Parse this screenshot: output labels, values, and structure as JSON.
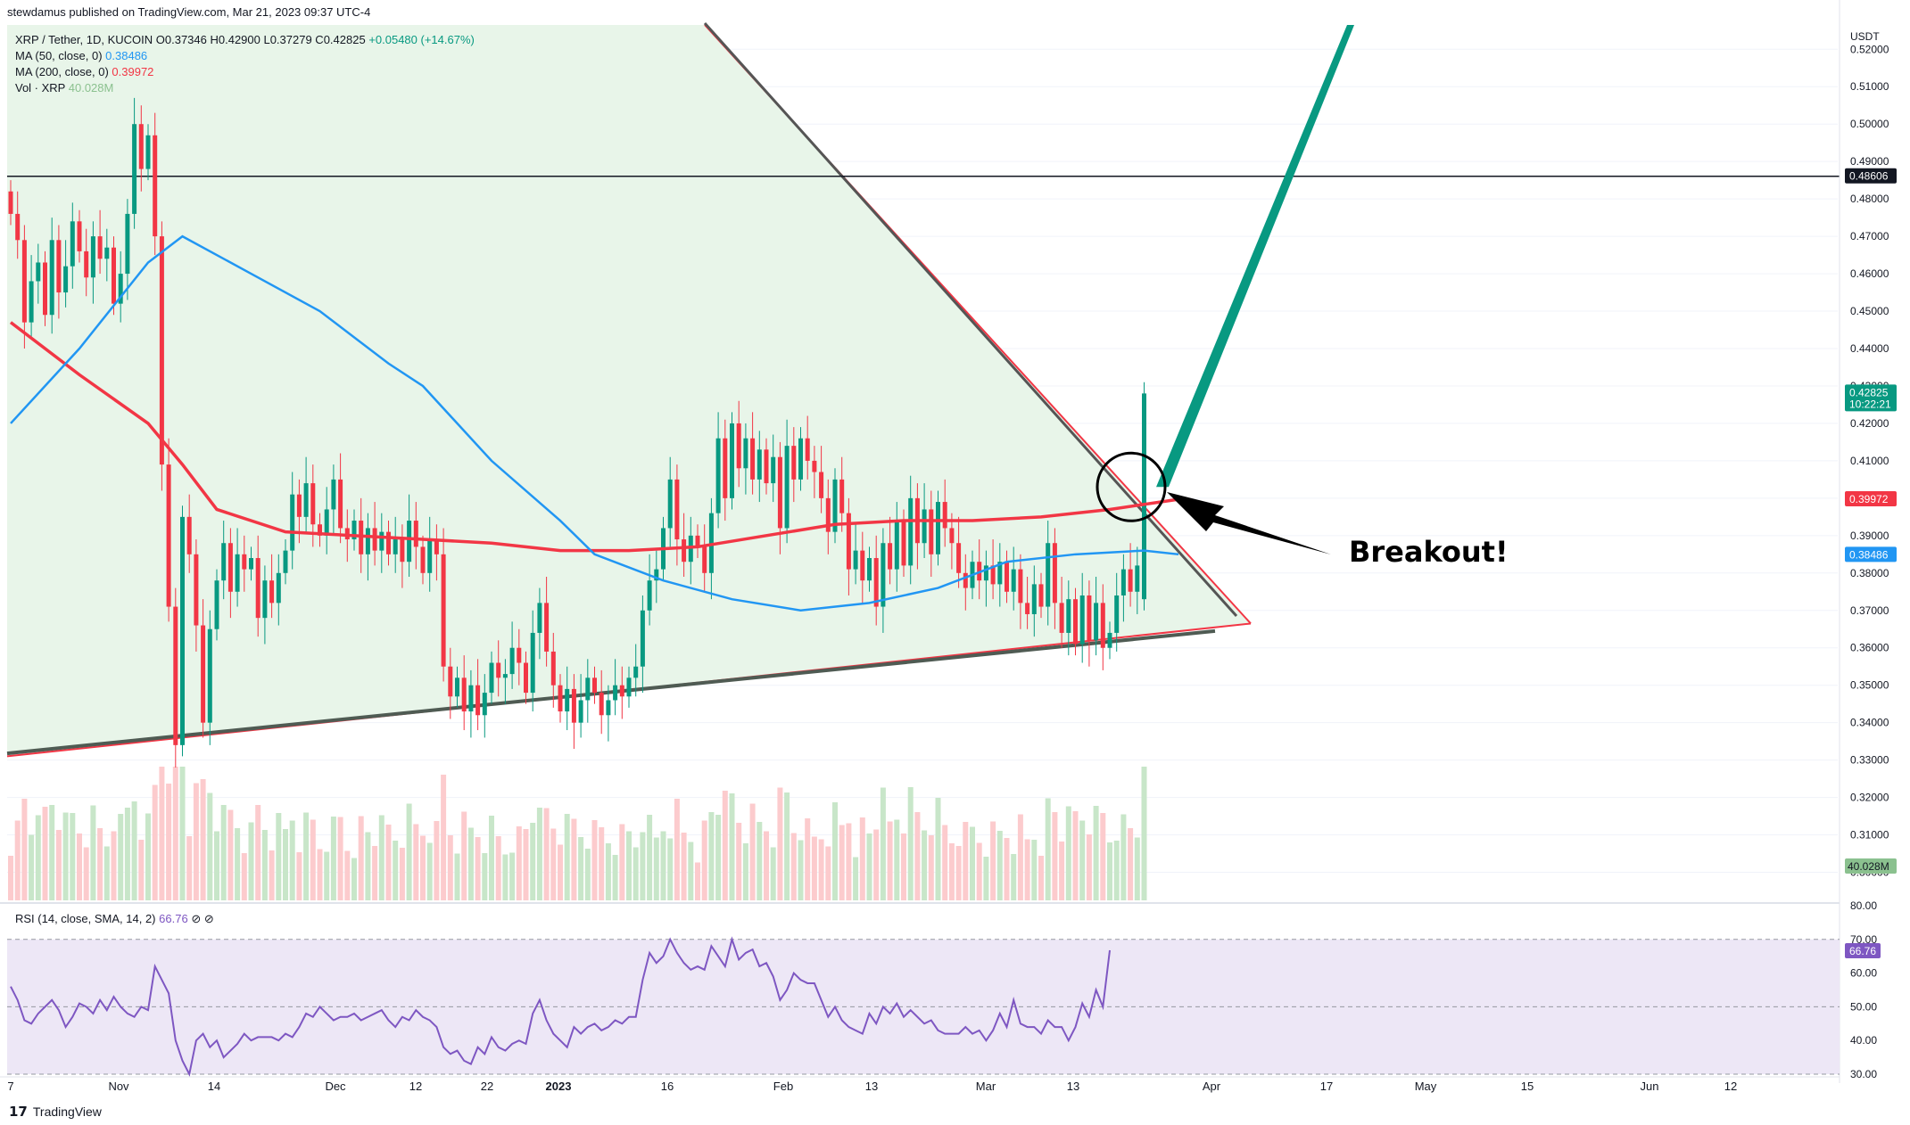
{
  "header": {
    "published": "stewdamus published on TradingView.com, Mar 21, 2023 09:37 UTC-4"
  },
  "legend": {
    "symbol": "XRP / Tether, 1D, KUCOIN",
    "ohlc": "O0.37346 H0.42900 L0.37279 C0.42825",
    "change": "+0.05480 (+14.67%)",
    "ma50_label": "MA (50, close, 0)",
    "ma50_value": "0.38486",
    "ma200_label": "MA (200, close, 0)",
    "ma200_value": "0.39972",
    "vol_label": "Vol · XRP",
    "vol_value": "40.028M"
  },
  "rsi_legend": {
    "label": "RSI (14, close, SMA, 14, 2)",
    "value": "66.76"
  },
  "annotation": {
    "text": "Breakout!"
  },
  "footer": {
    "brand": "TradingView"
  },
  "colors": {
    "up": "#089981",
    "down": "#f23645",
    "ma50": "#2196f3",
    "ma200": "#f23645",
    "rsi": "#7e57c2",
    "rsi_band": "#ede7f6",
    "triangle_fill": "#e8f5e9",
    "vol_up": "#c8e6c9",
    "vol_down": "#fccbcd"
  },
  "chart_data": [
    {
      "type": "candlestick",
      "title": "XRP / Tether, 1D, KUCOIN",
      "currency": "USDT",
      "y_axis_ticks": [
        "0.52000",
        "0.51000",
        "0.50000",
        "0.49000",
        "0.48000",
        "0.47000",
        "0.46000",
        "0.45000",
        "0.44000",
        "0.43000",
        "0.42000",
        "0.41000",
        "0.40000",
        "0.39000",
        "0.38000",
        "0.37000",
        "0.36000",
        "0.35000",
        "0.34000",
        "0.33000",
        "0.32000",
        "0.31000",
        "0.30000"
      ],
      "ylim": [
        0.2925,
        0.5265
      ],
      "x_axis_ticks": [
        "7",
        "Nov",
        "14",
        "Dec",
        "12",
        "22",
        "2023",
        "16",
        "Feb",
        "13",
        "Mar",
        "13",
        "Apr",
        "17",
        "May",
        "15",
        "Jun",
        "12"
      ],
      "price_labels": [
        {
          "value": 0.48606,
          "text": "0.48606",
          "color": "#131722"
        },
        {
          "value": 0.42825,
          "text": "0.42825",
          "sub": "10:22:21",
          "color": "#089981"
        },
        {
          "value": 0.39972,
          "text": "0.39972",
          "color": "#f23645"
        },
        {
          "value": 0.38486,
          "text": "0.38486",
          "color": "#2196f3"
        }
      ],
      "horizontal_line": 0.48606,
      "candles": [
        [
          0.482,
          0.476
        ],
        [
          0.476,
          0.469
        ],
        [
          0.469,
          0.447
        ],
        [
          0.447,
          0.458
        ],
        [
          0.458,
          0.463
        ],
        [
          0.463,
          0.449
        ],
        [
          0.449,
          0.469
        ],
        [
          0.469,
          0.455
        ],
        [
          0.455,
          0.462
        ],
        [
          0.462,
          0.474
        ],
        [
          0.474,
          0.466
        ],
        [
          0.466,
          0.459
        ],
        [
          0.459,
          0.47
        ],
        [
          0.47,
          0.464
        ],
        [
          0.464,
          0.467
        ],
        [
          0.467,
          0.452
        ],
        [
          0.452,
          0.46
        ],
        [
          0.46,
          0.476
        ],
        [
          0.476,
          0.5
        ],
        [
          0.5,
          0.488
        ],
        [
          0.488,
          0.497
        ],
        [
          0.497,
          0.47
        ],
        [
          0.47,
          0.409
        ],
        [
          0.409,
          0.371
        ],
        [
          0.371,
          0.334
        ],
        [
          0.334,
          0.395
        ],
        [
          0.395,
          0.385
        ],
        [
          0.385,
          0.366
        ],
        [
          0.366,
          0.34
        ],
        [
          0.34,
          0.365
        ],
        [
          0.365,
          0.378
        ],
        [
          0.378,
          0.388
        ],
        [
          0.388,
          0.375
        ],
        [
          0.375,
          0.385
        ],
        [
          0.385,
          0.381
        ],
        [
          0.381,
          0.384
        ],
        [
          0.384,
          0.368
        ],
        [
          0.368,
          0.378
        ],
        [
          0.378,
          0.372
        ],
        [
          0.372,
          0.38
        ],
        [
          0.38,
          0.386
        ],
        [
          0.386,
          0.401
        ],
        [
          0.401,
          0.395
        ],
        [
          0.395,
          0.404
        ],
        [
          0.404,
          0.393
        ],
        [
          0.393,
          0.39
        ],
        [
          0.39,
          0.397
        ],
        [
          0.397,
          0.405
        ],
        [
          0.405,
          0.392
        ],
        [
          0.392,
          0.389
        ],
        [
          0.389,
          0.394
        ],
        [
          0.394,
          0.385
        ],
        [
          0.385,
          0.392
        ],
        [
          0.392,
          0.386
        ],
        [
          0.386,
          0.391
        ],
        [
          0.391,
          0.385
        ],
        [
          0.385,
          0.389
        ],
        [
          0.389,
          0.383
        ],
        [
          0.383,
          0.394
        ],
        [
          0.394,
          0.387
        ],
        [
          0.387,
          0.38
        ],
        [
          0.38,
          0.389
        ],
        [
          0.389,
          0.385
        ],
        [
          0.385,
          0.355
        ],
        [
          0.355,
          0.347
        ],
        [
          0.347,
          0.352
        ],
        [
          0.352,
          0.343
        ],
        [
          0.343,
          0.35
        ],
        [
          0.35,
          0.342
        ],
        [
          0.342,
          0.348
        ],
        [
          0.348,
          0.356
        ],
        [
          0.356,
          0.352
        ],
        [
          0.352,
          0.353
        ],
        [
          0.353,
          0.36
        ],
        [
          0.36,
          0.356
        ],
        [
          0.356,
          0.348
        ],
        [
          0.348,
          0.364
        ],
        [
          0.364,
          0.372
        ],
        [
          0.372,
          0.359
        ],
        [
          0.359,
          0.35
        ],
        [
          0.35,
          0.343
        ],
        [
          0.343,
          0.349
        ],
        [
          0.349,
          0.34
        ],
        [
          0.34,
          0.346
        ],
        [
          0.346,
          0.352
        ],
        [
          0.352,
          0.348
        ],
        [
          0.348,
          0.342
        ],
        [
          0.342,
          0.346
        ],
        [
          0.346,
          0.35
        ],
        [
          0.35,
          0.347
        ],
        [
          0.347,
          0.352
        ],
        [
          0.352,
          0.355
        ],
        [
          0.355,
          0.37
        ],
        [
          0.37,
          0.378
        ],
        [
          0.378,
          0.381
        ],
        [
          0.381,
          0.392
        ],
        [
          0.392,
          0.405
        ],
        [
          0.405,
          0.389
        ],
        [
          0.389,
          0.383
        ],
        [
          0.383,
          0.39
        ],
        [
          0.39,
          0.387
        ],
        [
          0.387,
          0.38
        ],
        [
          0.38,
          0.396
        ],
        [
          0.396,
          0.416
        ],
        [
          0.416,
          0.4
        ],
        [
          0.4,
          0.42
        ],
        [
          0.42,
          0.408
        ],
        [
          0.408,
          0.416
        ],
        [
          0.416,
          0.405
        ],
        [
          0.405,
          0.413
        ],
        [
          0.413,
          0.404
        ],
        [
          0.404,
          0.411
        ],
        [
          0.411,
          0.392
        ],
        [
          0.392,
          0.414
        ],
        [
          0.414,
          0.405
        ],
        [
          0.405,
          0.416
        ],
        [
          0.416,
          0.41
        ],
        [
          0.41,
          0.407
        ],
        [
          0.407,
          0.4
        ],
        [
          0.4,
          0.391
        ],
        [
          0.391,
          0.405
        ],
        [
          0.405,
          0.396
        ],
        [
          0.396,
          0.381
        ],
        [
          0.381,
          0.386
        ],
        [
          0.386,
          0.378
        ],
        [
          0.378,
          0.384
        ],
        [
          0.384,
          0.371
        ],
        [
          0.371,
          0.388
        ],
        [
          0.388,
          0.381
        ],
        [
          0.381,
          0.394
        ],
        [
          0.394,
          0.382
        ],
        [
          0.382,
          0.4
        ],
        [
          0.4,
          0.388
        ],
        [
          0.388,
          0.397
        ],
        [
          0.397,
          0.385
        ],
        [
          0.385,
          0.399
        ],
        [
          0.399,
          0.392
        ],
        [
          0.392,
          0.388
        ],
        [
          0.388,
          0.38
        ],
        [
          0.38,
          0.376
        ],
        [
          0.376,
          0.383
        ],
        [
          0.383,
          0.378
        ],
        [
          0.378,
          0.382
        ],
        [
          0.382,
          0.377
        ],
        [
          0.377,
          0.383
        ],
        [
          0.383,
          0.375
        ],
        [
          0.375,
          0.381
        ],
        [
          0.381,
          0.372
        ],
        [
          0.372,
          0.369
        ],
        [
          0.369,
          0.377
        ],
        [
          0.377,
          0.371
        ],
        [
          0.371,
          0.388
        ],
        [
          0.388,
          0.372
        ],
        [
          0.372,
          0.364
        ],
        [
          0.364,
          0.373
        ],
        [
          0.373,
          0.361
        ],
        [
          0.361,
          0.374
        ],
        [
          0.374,
          0.362
        ],
        [
          0.362,
          0.372
        ],
        [
          0.372,
          0.36
        ],
        [
          0.36,
          0.364
        ],
        [
          0.364,
          0.374
        ],
        [
          0.374,
          0.381
        ],
        [
          0.381,
          0.375
        ],
        [
          0.375,
          0.382
        ],
        [
          0.373,
          0.428
        ]
      ],
      "ma50": [
        [
          0,
          0.42
        ],
        [
          10,
          0.44
        ],
        [
          20,
          0.463
        ],
        [
          25,
          0.47
        ],
        [
          35,
          0.46
        ],
        [
          45,
          0.45
        ],
        [
          55,
          0.436
        ],
        [
          60,
          0.43
        ],
        [
          70,
          0.41
        ],
        [
          80,
          0.394
        ],
        [
          85,
          0.385
        ],
        [
          95,
          0.378
        ],
        [
          105,
          0.373
        ],
        [
          115,
          0.37
        ],
        [
          125,
          0.372
        ],
        [
          135,
          0.376
        ],
        [
          145,
          0.383
        ],
        [
          155,
          0.385
        ],
        [
          165,
          0.386
        ],
        [
          170,
          0.385
        ]
      ],
      "ma200": [
        [
          0,
          0.447
        ],
        [
          10,
          0.433
        ],
        [
          20,
          0.42
        ],
        [
          25,
          0.409
        ],
        [
          30,
          0.397
        ],
        [
          40,
          0.391
        ],
        [
          60,
          0.389
        ],
        [
          70,
          0.388
        ],
        [
          80,
          0.386
        ],
        [
          90,
          0.386
        ],
        [
          100,
          0.387
        ],
        [
          110,
          0.39
        ],
        [
          120,
          0.393
        ],
        [
          130,
          0.394
        ],
        [
          140,
          0.394
        ],
        [
          150,
          0.395
        ],
        [
          160,
          0.397
        ],
        [
          170,
          0.3997
        ]
      ],
      "volume_label": "40.028M",
      "triangle": {
        "upper": [
          [
            570,
            0.537
          ],
          [
            1370,
            0.367
          ]
        ],
        "lower": [
          [
            0,
            0.331
          ],
          [
            1370,
            0.364
          ]
        ]
      },
      "projection": {
        "from": [
          1300,
          0.403
        ],
        "to": [
          1520,
          0.525
        ]
      }
    },
    {
      "type": "line",
      "title": "RSI (14, close, SMA, 14, 2)",
      "y_axis_ticks": [
        "80.00",
        "70.00",
        "60.00",
        "50.00",
        "40.00",
        "30.00"
      ],
      "ylim": [
        30,
        80
      ],
      "band": [
        30,
        70
      ],
      "current_value": 66.76,
      "values": [
        56,
        52,
        46,
        45,
        48,
        50,
        52,
        49,
        44,
        47,
        51,
        50,
        48,
        52,
        49,
        53,
        50,
        48,
        47,
        50,
        49,
        62,
        58,
        54,
        40,
        34,
        30,
        40,
        42,
        38,
        40,
        35,
        37,
        39,
        42,
        40,
        41,
        41,
        41,
        40,
        42,
        41,
        44,
        48,
        47,
        50,
        48,
        46,
        47,
        47,
        48,
        46,
        47,
        48,
        49,
        46,
        44,
        47,
        46,
        49,
        47,
        46,
        44,
        38,
        36,
        37,
        34,
        33,
        38,
        36,
        41,
        38,
        37,
        39,
        40,
        39,
        48,
        52,
        46,
        42,
        40,
        38,
        44,
        42,
        44,
        45,
        43,
        44,
        46,
        45,
        47,
        47,
        58,
        66,
        63,
        65,
        70,
        66,
        63,
        61,
        62,
        61,
        68,
        65,
        62,
        70,
        64,
        66,
        67,
        62,
        63,
        59,
        52,
        55,
        60,
        58,
        57,
        57,
        52,
        47,
        50,
        46,
        44,
        43,
        42,
        48,
        45,
        50,
        48,
        51,
        47,
        49,
        47,
        45,
        46,
        43,
        42,
        42,
        42,
        44,
        42,
        43,
        40,
        43,
        48,
        44,
        52,
        45,
        44,
        44,
        42,
        46,
        44,
        44,
        40,
        44,
        51,
        47,
        55,
        50,
        66.76
      ]
    }
  ]
}
